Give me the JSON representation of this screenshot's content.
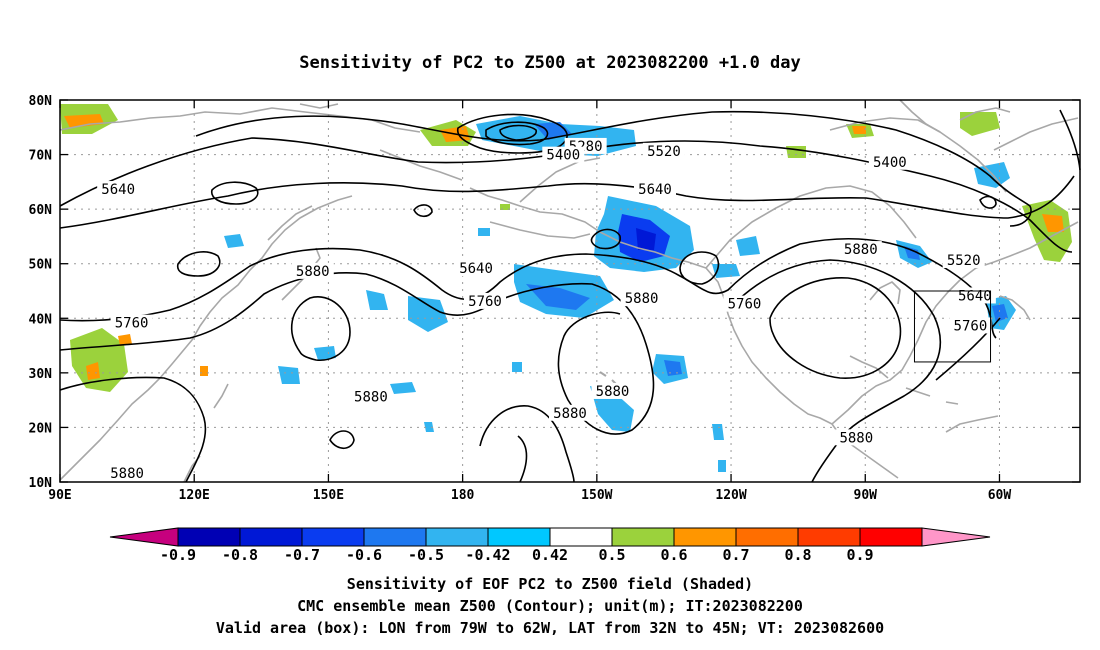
{
  "title": "Sensitivity of PC2 to Z500 at 2023082200 +1.0 day",
  "map": {
    "lon_labels": [
      "90E",
      "120E",
      "150E",
      "180",
      "150W",
      "120W",
      "90W",
      "60W"
    ],
    "lat_labels": [
      "80N",
      "70N",
      "60N",
      "50N",
      "40N",
      "30N",
      "20N",
      "10N"
    ],
    "contour_labels": [
      {
        "text": "5280",
        "lon": 207.5,
        "lat": 71.4
      },
      {
        "text": "5400",
        "lon": 202.5,
        "lat": 69.8
      },
      {
        "text": "5520",
        "lon": 225.0,
        "lat": 70.5
      },
      {
        "text": "5400",
        "lon": 275.5,
        "lat": 68.5
      },
      {
        "text": "5640",
        "lon": 103.0,
        "lat": 63.5
      },
      {
        "text": "5640",
        "lon": 223.0,
        "lat": 63.5
      },
      {
        "text": "5520",
        "lon": 292.0,
        "lat": 50.5
      },
      {
        "text": "5640",
        "lon": 183.0,
        "lat": 49.0
      },
      {
        "text": "5880",
        "lon": 146.5,
        "lat": 48.5
      },
      {
        "text": "5880",
        "lon": 220.0,
        "lat": 43.5
      },
      {
        "text": "5760",
        "lon": 185.0,
        "lat": 43.0
      },
      {
        "text": "5760",
        "lon": 243.0,
        "lat": 42.5
      },
      {
        "text": "5880",
        "lon": 269.0,
        "lat": 52.5
      },
      {
        "text": "5640",
        "lon": 294.5,
        "lat": 44.0
      },
      {
        "text": "5760",
        "lon": 293.5,
        "lat": 38.5
      },
      {
        "text": "5760",
        "lon": 106.0,
        "lat": 39.0
      },
      {
        "text": "5880",
        "lon": 159.5,
        "lat": 25.5
      },
      {
        "text": "5880",
        "lon": 213.5,
        "lat": 26.5
      },
      {
        "text": "5880",
        "lon": 204.0,
        "lat": 22.5
      },
      {
        "text": "5880",
        "lon": 268.0,
        "lat": 18.0
      },
      {
        "text": "5880",
        "lon": 105.0,
        "lat": 11.5
      }
    ],
    "valid_box": {
      "lon_min": 281,
      "lon_max": 298,
      "lat_min": 32,
      "lat_max": 45
    }
  },
  "colorbar": {
    "labels": [
      "-0.9",
      "-0.8",
      "-0.7",
      "-0.6",
      "-0.5",
      "-0.42",
      "0.42",
      "0.5",
      "0.6",
      "0.7",
      "0.8",
      "0.9"
    ],
    "colors": [
      "#c6007e",
      "#0000b4",
      "#0018d6",
      "#0a3cf0",
      "#1e78f0",
      "#32b4f0",
      "#00c8ff",
      "#ffffff",
      "#9bd23c",
      "#ff9600",
      "#ff6e00",
      "#ff3c00",
      "#ff0000",
      "#ff96c8"
    ]
  },
  "footer": {
    "line1": "Sensitivity of EOF PC2 to Z500 field (Shaded)",
    "line2": "CMC ensemble mean Z500 (Contour); unit(m); IT:2023082200",
    "line3": "Valid area (box): LON from 79W to 62W, LAT from 32N to 45N; VT: 2023082600"
  }
}
